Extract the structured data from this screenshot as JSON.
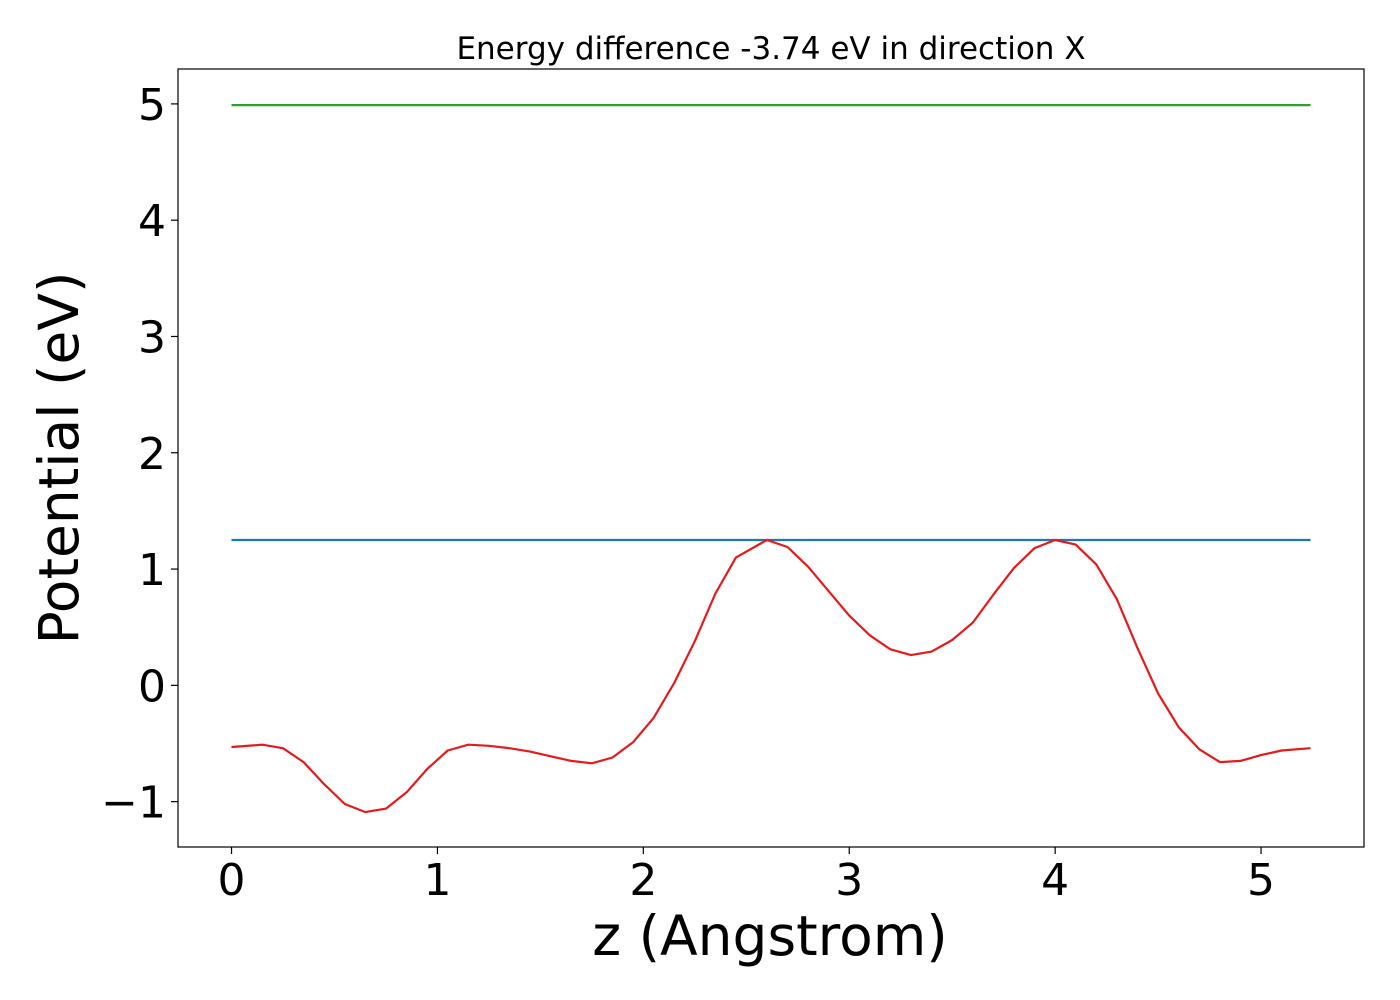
{
  "chart_data": {
    "type": "line",
    "title": "Energy difference -3.74 eV in direction X",
    "xlabel": "z (Angstrom)",
    "ylabel": "Potential (eV)",
    "xlim": [
      -0.26,
      5.5
    ],
    "ylim": [
      -1.39,
      5.3
    ],
    "x_ticks": [
      0,
      1,
      2,
      3,
      4,
      5
    ],
    "x_tick_labels": [
      "0",
      "1",
      "2",
      "3",
      "4",
      "5"
    ],
    "y_ticks": [
      -1,
      0,
      1,
      2,
      3,
      4,
      5
    ],
    "y_tick_labels": [
      "−1",
      "0",
      "1",
      "2",
      "3",
      "4",
      "5"
    ],
    "grid": false,
    "series": [
      {
        "color": "#2ca02c",
        "x": [
          0,
          5.24
        ],
        "y": [
          4.99,
          4.99
        ]
      },
      {
        "color": "#1f77b4",
        "x": [
          0,
          5.24
        ],
        "y": [
          1.25,
          1.25
        ]
      },
      {
        "color": "#e41a1c",
        "x": [
          0,
          0.15,
          0.25,
          0.35,
          0.45,
          0.55,
          0.65,
          0.75,
          0.85,
          0.95,
          1.05,
          1.15,
          1.25,
          1.35,
          1.45,
          1.55,
          1.65,
          1.75,
          1.85,
          1.95,
          2.05,
          2.15,
          2.25,
          2.35,
          2.45,
          2.6,
          2.7,
          2.8,
          2.9,
          3.0,
          3.1,
          3.2,
          3.3,
          3.4,
          3.5,
          3.6,
          3.7,
          3.8,
          3.9,
          4.0,
          4.1,
          4.2,
          4.3,
          4.4,
          4.5,
          4.6,
          4.7,
          4.8,
          4.9,
          5.0,
          5.1,
          5.24
        ],
        "y": [
          -0.53,
          -0.51,
          -0.54,
          -0.66,
          -0.85,
          -1.02,
          -1.09,
          -1.06,
          -0.92,
          -0.72,
          -0.56,
          -0.51,
          -0.52,
          -0.54,
          -0.57,
          -0.61,
          -0.65,
          -0.67,
          -0.62,
          -0.49,
          -0.28,
          0.02,
          0.38,
          0.79,
          1.1,
          1.25,
          1.19,
          1.02,
          0.81,
          0.6,
          0.43,
          0.31,
          0.26,
          0.29,
          0.39,
          0.54,
          0.78,
          1.01,
          1.18,
          1.25,
          1.21,
          1.04,
          0.74,
          0.32,
          -0.07,
          -0.36,
          -0.55,
          -0.66,
          -0.65,
          -0.6,
          -0.56,
          -0.54
        ]
      }
    ]
  }
}
